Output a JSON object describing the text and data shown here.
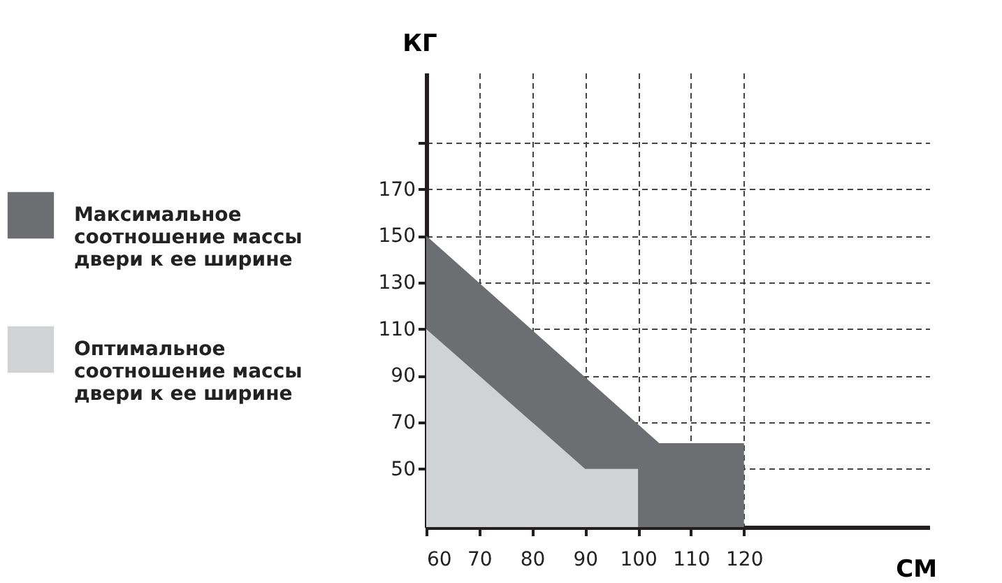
{
  "chart_data": {
    "type": "area",
    "xlabel": "СМ",
    "ylabel": "КГ",
    "xlim": [
      60,
      155
    ],
    "ylim": [
      25,
      220
    ],
    "xticks": [
      60,
      70,
      80,
      90,
      100,
      110,
      120
    ],
    "yticks": [
      50,
      70,
      90,
      110,
      130,
      150,
      170,
      {
        "value": 190,
        "label": null
      }
    ],
    "grid": true,
    "legend": "left",
    "series": [
      {
        "name": "Максимальное соотношение массы двери к ее ширине",
        "color": "#6d6e71",
        "x": [
          60,
          104,
          120
        ],
        "values": [
          150,
          61,
          61
        ]
      },
      {
        "name": "Оптимальное соотношение массы двери к ее ширине",
        "color": "#d1d2d4",
        "x": [
          60,
          90,
          100
        ],
        "values": [
          110,
          50,
          50
        ]
      }
    ]
  }
}
